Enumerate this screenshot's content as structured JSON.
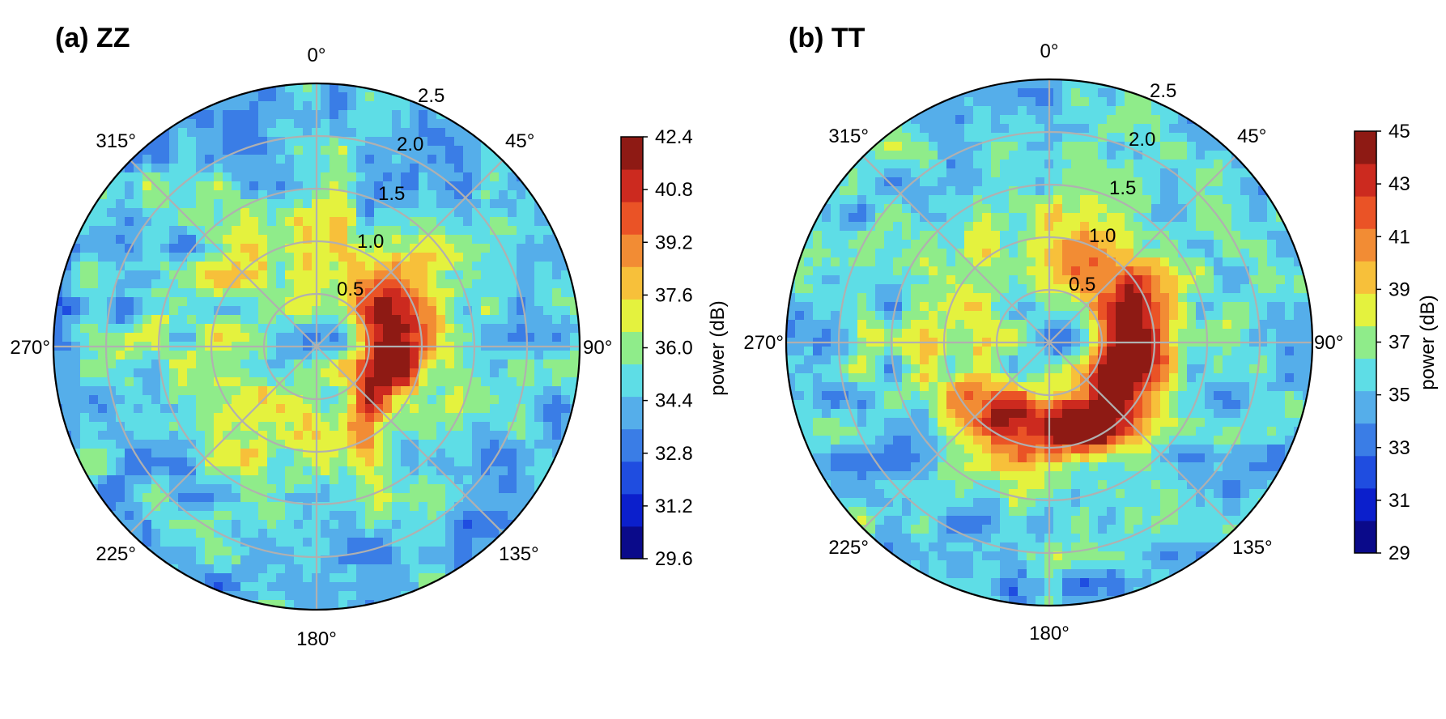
{
  "chart_data": [
    {
      "type": "heatmap",
      "coordinate_system": "polar",
      "title": "(a) ZZ",
      "angular_ticks": [
        "0°",
        "45°",
        "90°",
        "135°",
        "180°",
        "225°",
        "270°",
        "315°"
      ],
      "radial_ticks": [
        "0.5",
        "1.0",
        "1.5",
        "2.0",
        "2.5"
      ],
      "radial_range": [
        0,
        2.5
      ],
      "angle_direction": "clockwise",
      "zero_location": "top",
      "grid": true,
      "colorbar": {
        "label": "power (dB)",
        "range": [
          29.6,
          42.4
        ],
        "ticks": [
          "42.4",
          "40.8",
          "39.2",
          "37.6",
          "36.0",
          "34.4",
          "32.8",
          "31.2",
          "29.6"
        ],
        "colors": [
          "#0a0a8a",
          "#0b1fcc",
          "#1f4de0",
          "#3a7de6",
          "#55aeea",
          "#5edde6",
          "#8fec8a",
          "#e4f23e",
          "#f7c03a",
          "#f28c34",
          "#ea5326",
          "#cc2a1f",
          "#8e1a14"
        ]
      },
      "features": [
        {
          "description": "hot crescent",
          "peak_power_db": 41.5,
          "radius_range": [
            0.3,
            1.1
          ],
          "angle_range_deg": [
            20,
            150
          ]
        }
      ]
    },
    {
      "type": "heatmap",
      "coordinate_system": "polar",
      "title": "(b) TT",
      "angular_ticks": [
        "0°",
        "45°",
        "90°",
        "135°",
        "180°",
        "225°",
        "270°",
        "315°"
      ],
      "radial_ticks": [
        "0.5",
        "1.0",
        "1.5",
        "2.0",
        "2.5"
      ],
      "radial_range": [
        0,
        2.5
      ],
      "angle_direction": "clockwise",
      "zero_location": "top",
      "grid": true,
      "colorbar": {
        "label": "power (dB)",
        "range": [
          29,
          45
        ],
        "ticks": [
          "45",
          "43",
          "41",
          "39",
          "37",
          "35",
          "33",
          "31",
          "29"
        ],
        "colors": [
          "#0a0a8a",
          "#0b1fcc",
          "#1f4de0",
          "#3a7de6",
          "#55aeea",
          "#5edde6",
          "#8fec8a",
          "#e4f23e",
          "#f7c03a",
          "#f28c34",
          "#ea5326",
          "#cc2a1f",
          "#8e1a14"
        ]
      },
      "features": [
        {
          "description": "hot crescent",
          "peak_power_db": 44.5,
          "radius_range": [
            0.4,
            1.2
          ],
          "angle_range_deg": [
            20,
            240
          ]
        }
      ]
    }
  ]
}
